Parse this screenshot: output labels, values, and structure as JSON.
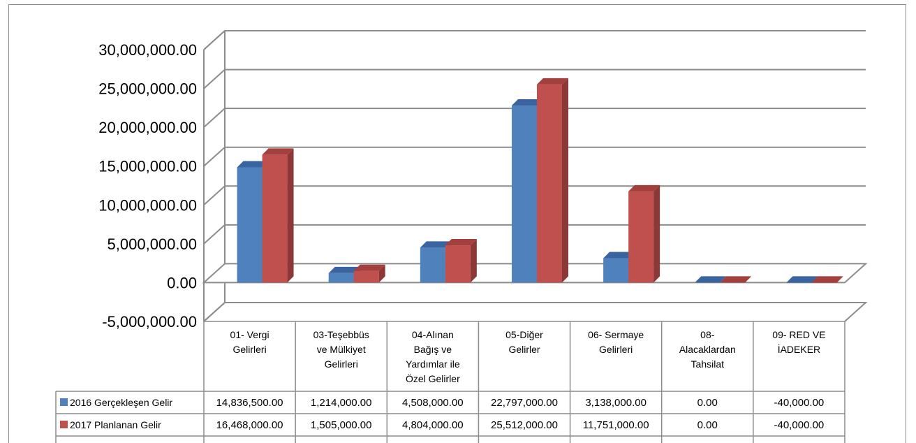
{
  "chart_data": {
    "type": "bar",
    "title": "",
    "xlabel": "",
    "ylabel": "",
    "ylim": [
      -5000000,
      30000000
    ],
    "ytick_step": 5000000,
    "ytick_labels": [
      "30,000,000.00",
      "25,000,000.00",
      "20,000,000.00",
      "15,000,000.00",
      "10,000,000.00",
      "5,000,000.00",
      "0.00",
      "-5,000,000.00"
    ],
    "grid": true,
    "legend_position": "data-table",
    "categories": [
      [
        "01- Vergi",
        "Gelirleri"
      ],
      [
        "03-Teşebbüs",
        "ve Mülkiyet",
        "Gelirleri"
      ],
      [
        "04-Alınan",
        "Bağış ve",
        "Yardımlar ile",
        "Özel Gelirler"
      ],
      [
        "05-Diğer",
        "Gelirler"
      ],
      [
        "06- Sermaye",
        "Gelirleri"
      ],
      [
        "08-",
        "Alacaklardan",
        "Tahsilat"
      ],
      [
        "09- RED VE",
        "İADEKER"
      ]
    ],
    "series": [
      {
        "name": "2016  Gerçekleşen Gelir",
        "color": "#4f81bd",
        "side_color": "#385d8a",
        "top_color": "#3a64a0",
        "values": [
          14836500,
          1214000,
          4508000,
          22797000,
          3138000,
          0,
          -40000
        ],
        "value_labels": [
          "14,836,500.00",
          "1,214,000.00",
          "4,508,000.00",
          "22,797,000.00",
          "3,138,000.00",
          "0.00",
          "-40,000.00"
        ]
      },
      {
        "name": "2017 Planlanan Gelir",
        "color": "#c0504d",
        "side_color": "#8c3836",
        "top_color": "#a33f3c",
        "values": [
          16468000,
          1505000,
          4804000,
          25512000,
          11751000,
          0,
          -40000
        ],
        "value_labels": [
          "16,468,000.00",
          "1,505,000.00",
          "4,804,000.00",
          "25,512,000.00",
          "11,751,000.00",
          "0.00",
          "-40,000.00"
        ]
      }
    ]
  }
}
